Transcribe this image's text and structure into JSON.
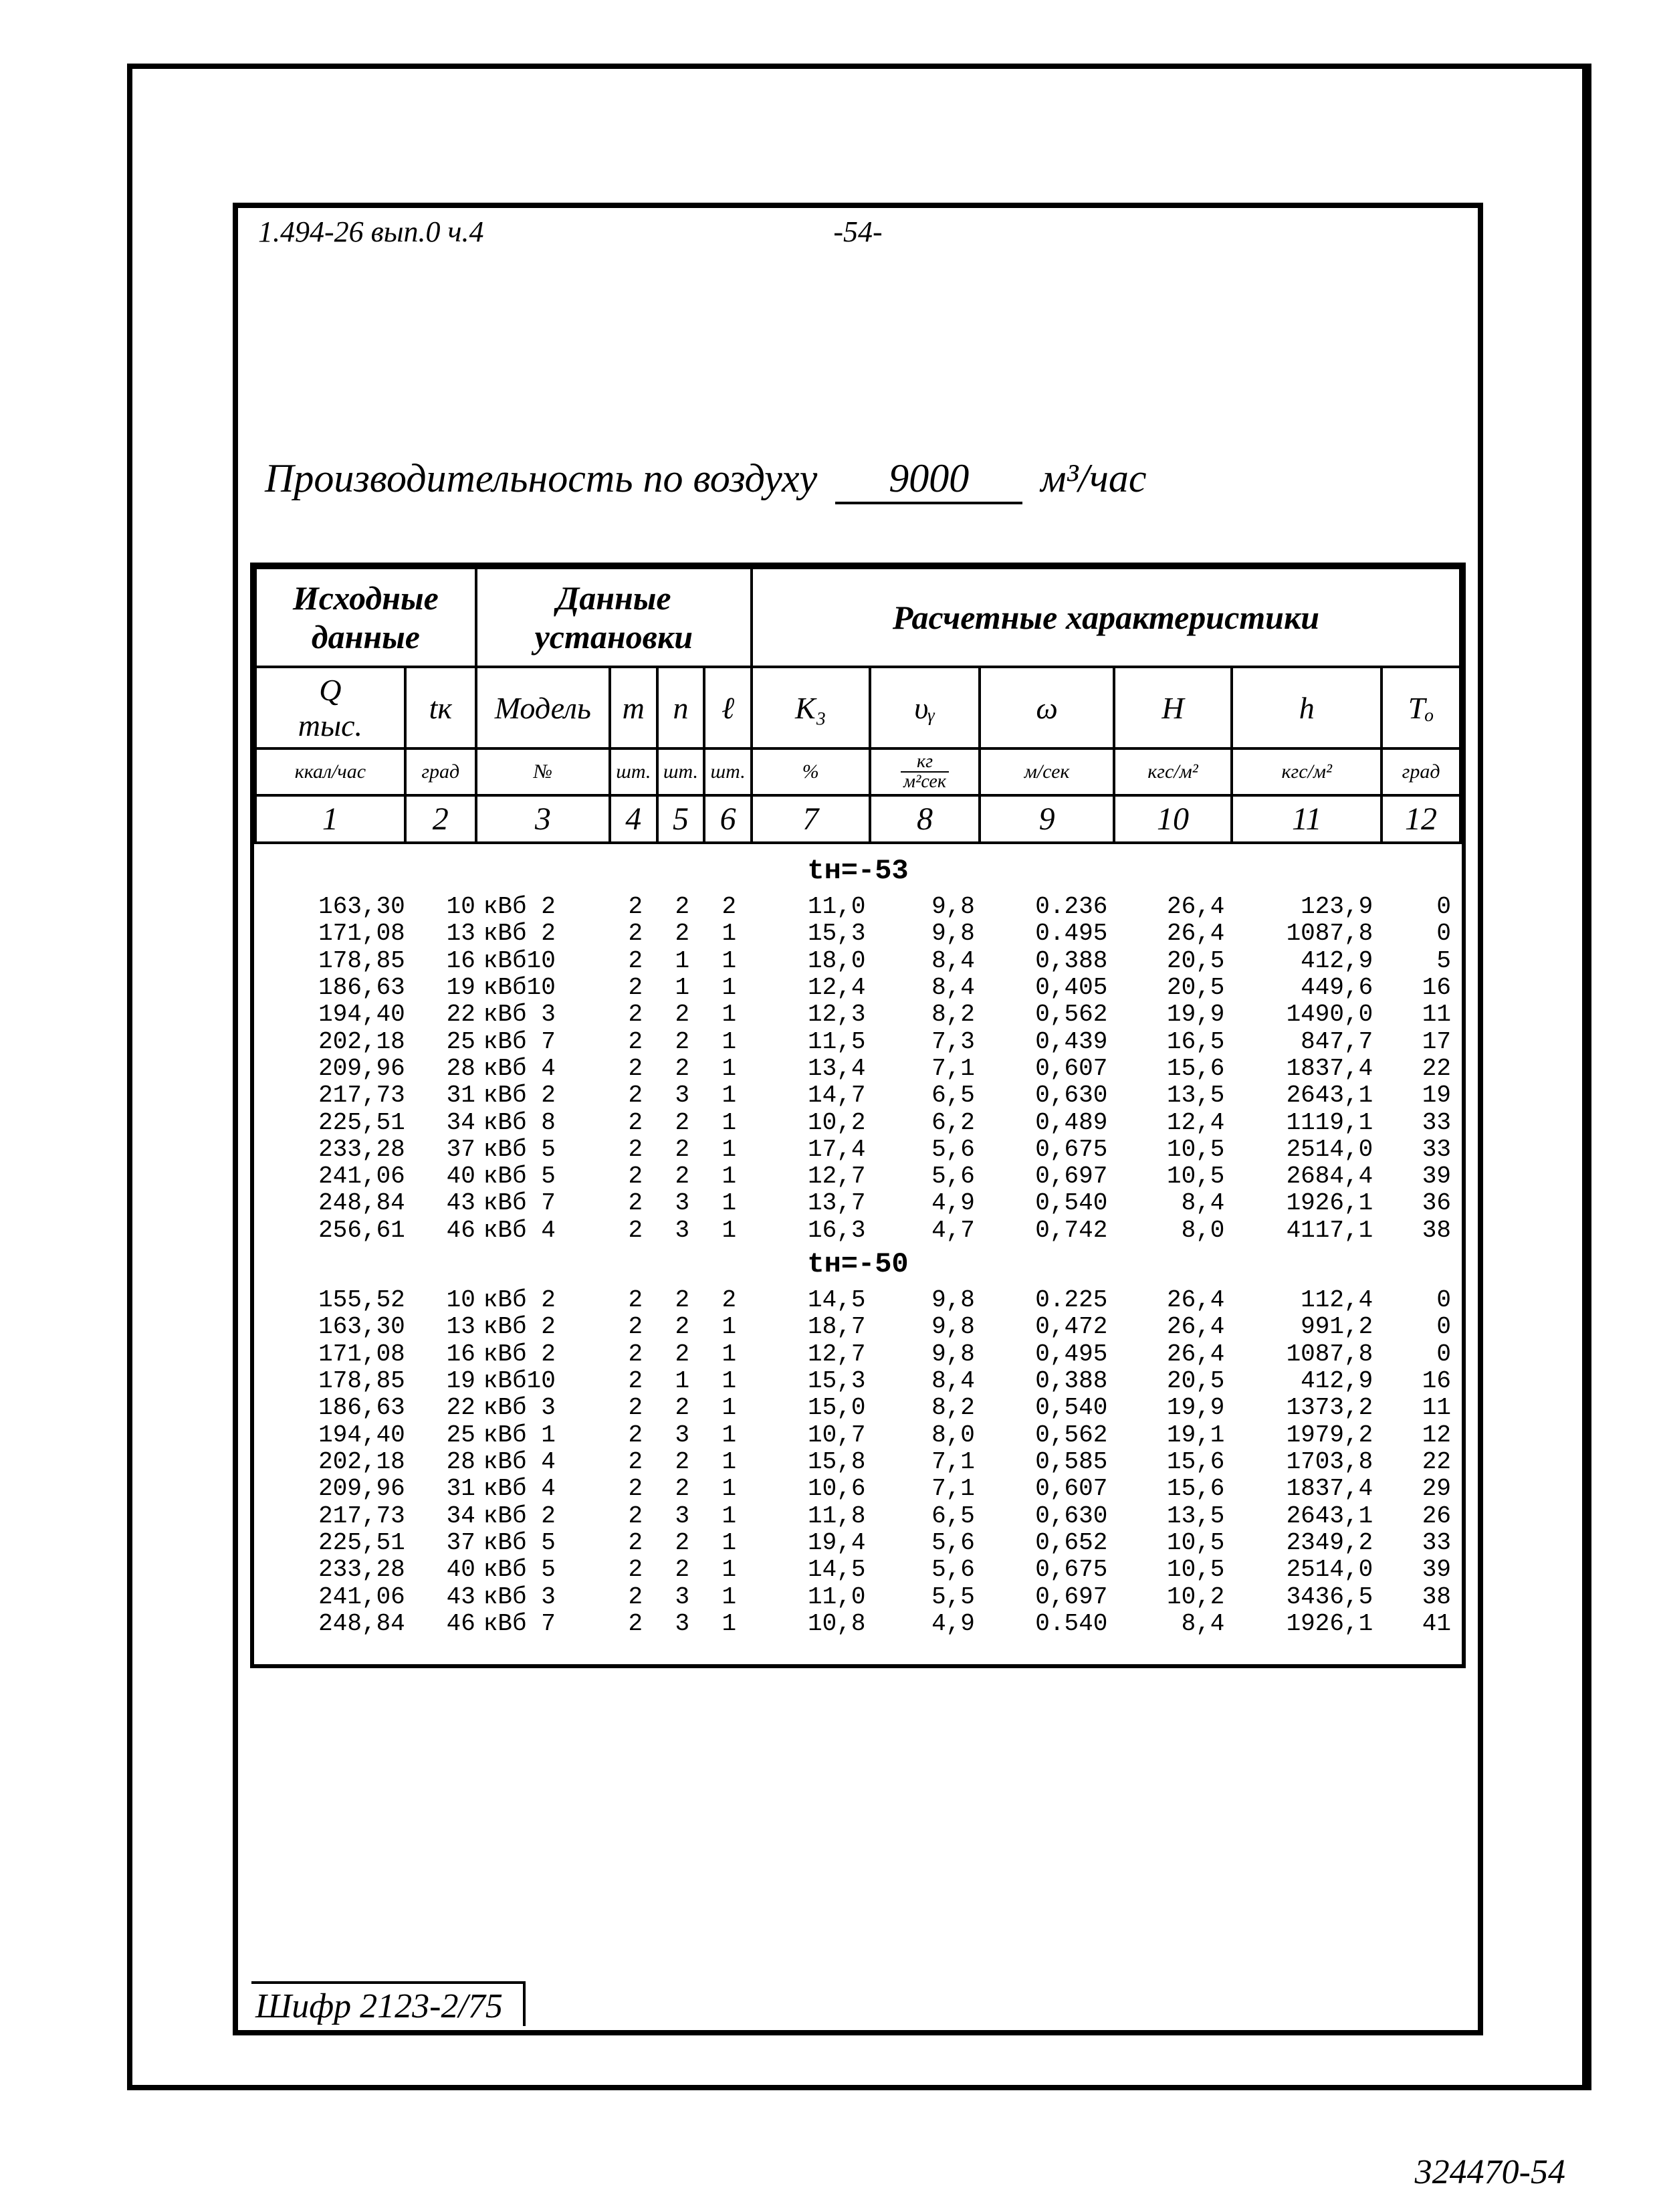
{
  "doc": {
    "top_left_note": "1.494-26  вып.0  ч.4",
    "top_center_note": "-54-",
    "title_prefix": "Производительность по воздуху",
    "title_value": "9000",
    "title_unit": "м³/час",
    "footer_cipher": "Шифр 2123-2/75",
    "bottom_right_stamp": "324470-54"
  },
  "header": {
    "sections": [
      "Исходные данные",
      "Данные установки",
      "Расчетные характеристики"
    ],
    "cols": [
      {
        "sym": "Q\nтыс.",
        "unit": "ккал/час",
        "num": "1",
        "w": 190
      },
      {
        "sym": "tк",
        "unit": "град",
        "num": "2",
        "w": 90
      },
      {
        "sym": "Модель",
        "unit": "№",
        "num": "3",
        "w": 170
      },
      {
        "sym": "m",
        "unit": "шт.",
        "num": "4",
        "w": 60
      },
      {
        "sym": "n",
        "unit": "шт.",
        "num": "5",
        "w": 60
      },
      {
        "sym": "ℓ",
        "unit": "шт.",
        "num": "6",
        "w": 60
      },
      {
        "sym": "K₃",
        "unit": "%",
        "num": "7",
        "w": 150
      },
      {
        "sym": "υᵧ",
        "unit_frac": {
          "top": "кг",
          "bot": "м²сек"
        },
        "num": "8",
        "w": 140
      },
      {
        "sym": "ω",
        "unit": "м/сек",
        "num": "9",
        "w": 170
      },
      {
        "sym": "H",
        "unit": "кгс/м²",
        "num": "10",
        "w": 150
      },
      {
        "sym": "h",
        "unit": "кгс/м²",
        "num": "11",
        "w": 190
      },
      {
        "sym": "Tₒ",
        "unit": "град",
        "num": "12",
        "w": 100
      }
    ]
  },
  "sections": [
    {
      "label": "tн=-53",
      "rows": [
        [
          "163,30",
          "10",
          "кВб 2",
          "2",
          "2",
          "2",
          "11,0",
          "9,8",
          "0.236",
          "26,4",
          "123,9",
          "0"
        ],
        [
          "171,08",
          "13",
          "кВб 2",
          "2",
          "2",
          "1",
          "15,3",
          "9,8",
          "0.495",
          "26,4",
          "1087,8",
          "0"
        ],
        [
          "178,85",
          "16",
          "кВб10",
          "2",
          "1",
          "1",
          "18,0",
          "8,4",
          "0,388",
          "20,5",
          "412,9",
          "5"
        ],
        [
          "186,63",
          "19",
          "кВб10",
          "2",
          "1",
          "1",
          "12,4",
          "8,4",
          "0,405",
          "20,5",
          "449,6",
          "16"
        ],
        [
          "194,40",
          "22",
          "кВб 3",
          "2",
          "2",
          "1",
          "12,3",
          "8,2",
          "0,562",
          "19,9",
          "1490,0",
          "11"
        ],
        [
          "202,18",
          "25",
          "кВб 7",
          "2",
          "2",
          "1",
          "11,5",
          "7,3",
          "0,439",
          "16,5",
          "847,7",
          "17"
        ],
        [
          "209,96",
          "28",
          "кВб 4",
          "2",
          "2",
          "1",
          "13,4",
          "7,1",
          "0,607",
          "15,6",
          "1837,4",
          "22"
        ],
        [
          "217,73",
          "31",
          "кВб 2",
          "2",
          "3",
          "1",
          "14,7",
          "6,5",
          "0,630",
          "13,5",
          "2643,1",
          "19"
        ],
        [
          "225,51",
          "34",
          "кВб 8",
          "2",
          "2",
          "1",
          "10,2",
          "6,2",
          "0,489",
          "12,4",
          "1119,1",
          "33"
        ],
        [
          "233,28",
          "37",
          "кВб 5",
          "2",
          "2",
          "1",
          "17,4",
          "5,6",
          "0,675",
          "10,5",
          "2514,0",
          "33"
        ],
        [
          "241,06",
          "40",
          "кВб 5",
          "2",
          "2",
          "1",
          "12,7",
          "5,6",
          "0,697",
          "10,5",
          "2684,4",
          "39"
        ],
        [
          "248,84",
          "43",
          "кВб 7",
          "2",
          "3",
          "1",
          "13,7",
          "4,9",
          "0,540",
          "8,4",
          "1926,1",
          "36"
        ],
        [
          "256,61",
          "46",
          "кВб 4",
          "2",
          "3",
          "1",
          "16,3",
          "4,7",
          "0,742",
          "8,0",
          "4117,1",
          "38"
        ]
      ]
    },
    {
      "label": "tн=-50",
      "rows": [
        [
          "155,52",
          "10",
          "кВб 2",
          "2",
          "2",
          "2",
          "14,5",
          "9,8",
          "0.225",
          "26,4",
          "112,4",
          "0"
        ],
        [
          "163,30",
          "13",
          "кВб 2",
          "2",
          "2",
          "1",
          "18,7",
          "9,8",
          "0,472",
          "26,4",
          "991,2",
          "0"
        ],
        [
          "171,08",
          "16",
          "кВб 2",
          "2",
          "2",
          "1",
          "12,7",
          "9,8",
          "0,495",
          "26,4",
          "1087,8",
          "0"
        ],
        [
          "178,85",
          "19",
          "кВб10",
          "2",
          "1",
          "1",
          "15,3",
          "8,4",
          "0,388",
          "20,5",
          "412,9",
          "16"
        ],
        [
          "186,63",
          "22",
          "кВб 3",
          "2",
          "2",
          "1",
          "15,0",
          "8,2",
          "0,540",
          "19,9",
          "1373,2",
          "11"
        ],
        [
          "194,40",
          "25",
          "кВб 1",
          "2",
          "3",
          "1",
          "10,7",
          "8,0",
          "0,562",
          "19,1",
          "1979,2",
          "12"
        ],
        [
          "202,18",
          "28",
          "кВб 4",
          "2",
          "2",
          "1",
          "15,8",
          "7,1",
          "0,585",
          "15,6",
          "1703,8",
          "22"
        ],
        [
          "209,96",
          "31",
          "кВб 4",
          "2",
          "2",
          "1",
          "10,6",
          "7,1",
          "0,607",
          "15,6",
          "1837,4",
          "29"
        ],
        [
          "217,73",
          "34",
          "кВб 2",
          "2",
          "3",
          "1",
          "11,8",
          "6,5",
          "0,630",
          "13,5",
          "2643,1",
          "26"
        ],
        [
          "225,51",
          "37",
          "кВб 5",
          "2",
          "2",
          "1",
          "19,4",
          "5,6",
          "0,652",
          "10,5",
          "2349,2",
          "33"
        ],
        [
          "233,28",
          "40",
          "кВб 5",
          "2",
          "2",
          "1",
          "14,5",
          "5,6",
          "0,675",
          "10,5",
          "2514,0",
          "39"
        ],
        [
          "241,06",
          "43",
          "кВб 3",
          "2",
          "3",
          "1",
          "11,0",
          "5,5",
          "0,697",
          "10,2",
          "3436,5",
          "38"
        ],
        [
          "248,84",
          "46",
          "кВб 7",
          "2",
          "3",
          "1",
          "10,8",
          "4,9",
          "0.540",
          "8,4",
          "1926,1",
          "41"
        ]
      ]
    }
  ],
  "colwidths_data": [
    190,
    90,
    170,
    60,
    60,
    60,
    150,
    140,
    170,
    150,
    190,
    100
  ]
}
